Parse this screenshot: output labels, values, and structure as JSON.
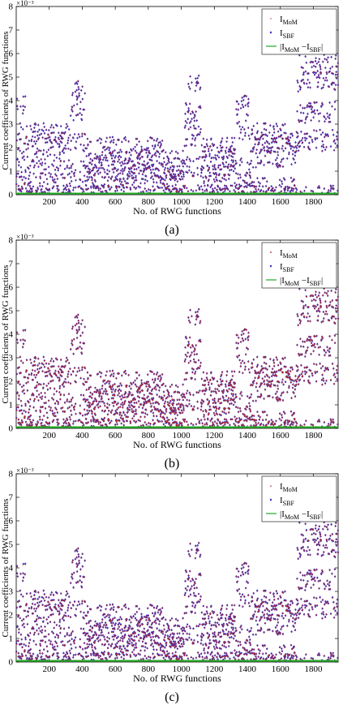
{
  "figure": {
    "panels": [
      {
        "label": "(a)"
      },
      {
        "label": "(b)"
      },
      {
        "label": "(c)"
      }
    ]
  },
  "chart_data": [
    {
      "type": "scatter",
      "panel_label": "(a)",
      "xlabel": "No. of RWG functions",
      "ylabel": "Current coefficients of RWG functions",
      "y_multiplier": "×10⁻³",
      "xlim": [
        0,
        1950
      ],
      "ylim": [
        0,
        8
      ],
      "xticks": [
        200,
        400,
        600,
        800,
        1000,
        1200,
        1400,
        1600,
        1800
      ],
      "yticks": [
        0,
        1,
        2,
        3,
        4,
        5,
        6,
        7,
        8
      ],
      "grid": false,
      "legend": "top-right",
      "series": [
        {
          "name": "I_MoM",
          "legend_main": "I",
          "legend_sub": "MoM",
          "marker": "dot",
          "color": "#b03030"
        },
        {
          "name": "I_SBF",
          "legend_main": "I",
          "legend_sub": "SBF",
          "marker": "diamond",
          "color": "#1a1acc"
        },
        {
          "name": "|I_MoM − I_SBF|",
          "legend_main": "|I",
          "legend_sub": "MoM",
          "legend_mid": " −I",
          "legend_sub2": "SBF",
          "legend_tail": "|",
          "marker": "line",
          "color": "#22aa22",
          "value": 0.05
        }
      ]
    },
    {
      "type": "scatter",
      "panel_label": "(b)",
      "xlabel": "No. of RWG functions",
      "ylabel": "Current coefficients of RWG functions",
      "y_multiplier": "×10⁻³",
      "xlim": [
        0,
        1950
      ],
      "ylim": [
        0,
        8
      ],
      "xticks": [
        200,
        400,
        600,
        800,
        1000,
        1200,
        1400,
        1600,
        1800
      ],
      "yticks": [
        0,
        1,
        2,
        3,
        4,
        5,
        6,
        7,
        8
      ],
      "grid": false,
      "legend": "top-right",
      "series": [
        {
          "name": "I_MoM",
          "legend_main": "I",
          "legend_sub": "MoM",
          "marker": "square",
          "color": "#b03030"
        },
        {
          "name": "I_SBF",
          "legend_main": "I",
          "legend_sub": "SBF",
          "marker": "diamond",
          "color": "#1a1acc"
        },
        {
          "name": "|I_MoM − I_SBF|",
          "legend_main": "|I",
          "legend_sub": "MoM",
          "legend_mid": " −I",
          "legend_sub2": "SBF",
          "legend_tail": "|",
          "marker": "line",
          "color": "#22aa22",
          "value": 0.05
        }
      ]
    },
    {
      "type": "scatter",
      "panel_label": "(c)",
      "xlabel": "No. of RWG functions",
      "ylabel": "Current coefficients of RWG functions",
      "y_multiplier": "×10⁻³",
      "xlim": [
        0,
        1950
      ],
      "ylim": [
        0,
        8
      ],
      "xticks": [
        200,
        400,
        600,
        800,
        1000,
        1200,
        1400,
        1600,
        1800
      ],
      "yticks": [
        0,
        1,
        2,
        3,
        4,
        5,
        6,
        7,
        8
      ],
      "grid": false,
      "legend": "top-right",
      "series": [
        {
          "name": "I_MoM",
          "legend_main": "I",
          "legend_sub": "MoM",
          "marker": "triangle",
          "color": "#b03030"
        },
        {
          "name": "I_SBF",
          "legend_main": "I",
          "legend_sub": "SBF",
          "marker": "diamond",
          "color": "#1a1acc"
        },
        {
          "name": "|I_MoM − I_SBF|",
          "legend_main": "|I",
          "legend_sub": "MoM",
          "legend_mid": " −I",
          "legend_sub2": "SBF",
          "legend_tail": "|",
          "marker": "line",
          "color": "#22aa22",
          "value": 0.05
        }
      ]
    }
  ],
  "scatter_profile": {
    "n_points": 1950,
    "bands": [
      {
        "x": [
          0,
          60
        ],
        "levels": [
          3.8,
          1.6,
          0.6,
          2.6
        ]
      },
      {
        "x": [
          60,
          330
        ],
        "levels": [
          2.6,
          1.5,
          0.5,
          2.2
        ]
      },
      {
        "x": [
          330,
          420
        ],
        "levels": [
          4.5,
          2.2,
          1.0,
          3.5
        ]
      },
      {
        "x": [
          420,
          900
        ],
        "levels": [
          1.5,
          1.0,
          0.7,
          2.0
        ]
      },
      {
        "x": [
          900,
          1020
        ],
        "levels": [
          1.1,
          0.6,
          0.5,
          1.4
        ]
      },
      {
        "x": [
          1020,
          1120
        ],
        "levels": [
          3.5,
          2.5,
          1.2,
          4.8
        ]
      },
      {
        "x": [
          1120,
          1330
        ],
        "levels": [
          1.5,
          1.0,
          0.5,
          2.0
        ]
      },
      {
        "x": [
          1330,
          1420
        ],
        "levels": [
          3.8,
          2.8,
          1.3,
          0.5
        ]
      },
      {
        "x": [
          1420,
          1650
        ],
        "levels": [
          2.6,
          1.6,
          0.3,
          2.2
        ]
      },
      {
        "x": [
          1650,
          1700
        ],
        "levels": [
          1.9,
          2.3,
          0.4,
          1.6
        ]
      },
      {
        "x": [
          1700,
          1950
        ],
        "levels": [
          4.8,
          3.5,
          5.5,
          2.3
        ]
      }
    ]
  }
}
